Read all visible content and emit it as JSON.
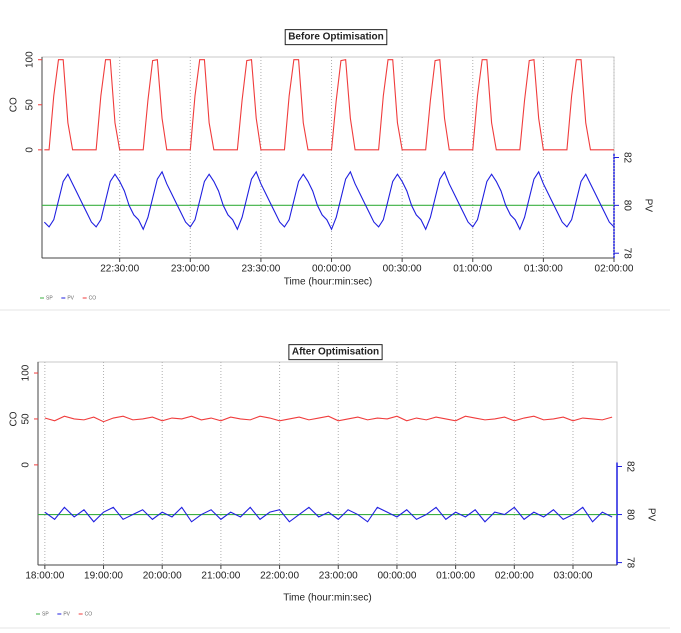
{
  "chart_data": [
    {
      "type": "line",
      "title": "Before Optimisation",
      "xlabel": "Time (hour:min:sec)",
      "ylabel": "CO",
      "y2label": "PV",
      "xlim": [
        "21:57:00",
        "02:00:00"
      ],
      "xticks": [
        "22:30:00",
        "23:00:00",
        "23:30:00",
        "00:00:00",
        "00:30:00",
        "01:00:00",
        "01:30:00",
        "02:00:00"
      ],
      "ylim": [
        -120,
        103
      ],
      "yticks": [
        0,
        50,
        100
      ],
      "y2lim": [
        77.8,
        86.2
      ],
      "y2ticks": [
        78,
        80,
        82
      ],
      "grid": "x",
      "legend": "bottom-left",
      "x": [
        "21:58:00",
        "22:00:00",
        "22:02:00",
        "22:04:00",
        "22:06:00",
        "22:08:00",
        "22:10:00",
        "22:12:00",
        "22:14:00",
        "22:16:00",
        "22:18:00",
        "22:20:00",
        "22:22:00",
        "22:24:00",
        "22:26:00",
        "22:28:00",
        "22:30:00",
        "22:32:00",
        "22:34:00",
        "22:36:00",
        "22:38:00",
        "22:40:00",
        "22:42:00",
        "22:44:00",
        "22:46:00",
        "22:48:00",
        "22:50:00",
        "22:52:00",
        "22:54:00",
        "22:56:00",
        "22:58:00",
        "23:00:00",
        "23:02:00",
        "23:04:00",
        "23:06:00",
        "23:08:00",
        "23:10:00",
        "23:12:00",
        "23:14:00",
        "23:16:00",
        "23:18:00",
        "23:20:00",
        "23:22:00",
        "23:24:00",
        "23:26:00",
        "23:28:00",
        "23:30:00",
        "23:32:00",
        "23:34:00",
        "23:36:00",
        "23:38:00",
        "23:40:00",
        "23:42:00",
        "23:44:00",
        "23:46:00",
        "23:48:00",
        "23:50:00",
        "23:52:00",
        "23:54:00",
        "23:56:00",
        "23:58:00",
        "00:00:00",
        "00:02:00",
        "00:04:00",
        "00:06:00",
        "00:08:00",
        "00:10:00",
        "00:12:00",
        "00:14:00",
        "00:16:00",
        "00:18:00",
        "00:20:00",
        "00:22:00",
        "00:24:00",
        "00:26:00",
        "00:28:00",
        "00:30:00",
        "00:32:00",
        "00:34:00",
        "00:36:00",
        "00:38:00",
        "00:40:00",
        "00:42:00",
        "00:44:00",
        "00:46:00",
        "00:48:00",
        "00:50:00",
        "00:52:00",
        "00:54:00",
        "00:56:00",
        "00:58:00",
        "01:00:00",
        "01:02:00",
        "01:04:00",
        "01:06:00",
        "01:08:00",
        "01:10:00",
        "01:12:00",
        "01:14:00",
        "01:16:00",
        "01:18:00",
        "01:20:00",
        "01:22:00",
        "01:24:00",
        "01:26:00",
        "01:28:00",
        "01:30:00",
        "01:32:00",
        "01:34:00",
        "01:36:00",
        "01:38:00",
        "01:40:00",
        "01:42:00",
        "01:44:00",
        "01:46:00",
        "01:48:00",
        "01:50:00",
        "01:52:00",
        "01:54:00",
        "01:56:00",
        "01:58:00",
        "02:00:00"
      ],
      "series": [
        {
          "name": "SP",
          "color": "#3cb043",
          "axis": "y2",
          "x": [
            "21:57:00",
            "02:00:00"
          ],
          "values": [
            80,
            80
          ]
        },
        {
          "name": "PV",
          "color": "#1f1fe0",
          "axis": "y2",
          "values": [
            79.3,
            79.1,
            79.4,
            80.2,
            81.0,
            81.3,
            80.9,
            80.5,
            80.1,
            79.7,
            79.3,
            79.1,
            79.4,
            80.2,
            81.0,
            81.3,
            81.0,
            80.6,
            80.0,
            79.6,
            79.4,
            79.0,
            79.5,
            80.3,
            81.1,
            81.4,
            80.9,
            80.5,
            80.1,
            79.7,
            79.3,
            79.1,
            79.4,
            80.2,
            81.0,
            81.3,
            81.0,
            80.6,
            80.0,
            79.6,
            79.4,
            79.0,
            79.5,
            80.3,
            81.1,
            81.4,
            80.9,
            80.5,
            80.1,
            79.7,
            79.3,
            79.1,
            79.4,
            80.2,
            81.0,
            81.3,
            81.0,
            80.6,
            80.0,
            79.6,
            79.4,
            79.0,
            79.5,
            80.3,
            81.1,
            81.4,
            80.9,
            80.5,
            80.1,
            79.7,
            79.3,
            79.1,
            79.4,
            80.2,
            81.0,
            81.3,
            81.0,
            80.6,
            80.0,
            79.6,
            79.4,
            79.0,
            79.5,
            80.3,
            81.1,
            81.4,
            80.9,
            80.5,
            80.1,
            79.7,
            79.3,
            79.1,
            79.4,
            80.2,
            81.0,
            81.3,
            81.0,
            80.6,
            80.0,
            79.6,
            79.4,
            79.0,
            79.5,
            80.3,
            81.1,
            81.4,
            80.9,
            80.5,
            80.1,
            79.7,
            79.3,
            79.1,
            79.4,
            80.2,
            81.0,
            81.3,
            80.9,
            80.5,
            80.1,
            79.7,
            79.3,
            79.1
          ]
        },
        {
          "name": "CO",
          "color": "#f03c3c",
          "values": [
            0,
            0,
            60,
            100,
            100,
            30,
            0,
            0,
            0,
            0,
            0,
            0,
            60,
            100,
            100,
            30,
            0,
            0,
            0,
            0,
            0,
            0,
            55,
            99,
            100,
            35,
            0,
            0,
            0,
            0,
            0,
            0,
            60,
            100,
            100,
            30,
            0,
            0,
            0,
            0,
            0,
            0,
            55,
            99,
            100,
            35,
            0,
            0,
            0,
            0,
            0,
            0,
            60,
            100,
            100,
            30,
            0,
            0,
            0,
            0,
            0,
            0,
            55,
            99,
            100,
            35,
            0,
            0,
            0,
            0,
            0,
            0,
            60,
            100,
            100,
            30,
            0,
            0,
            0,
            0,
            0,
            0,
            55,
            99,
            100,
            35,
            0,
            0,
            0,
            0,
            0,
            0,
            60,
            100,
            100,
            30,
            0,
            0,
            0,
            0,
            0,
            0,
            55,
            99,
            100,
            35,
            0,
            0,
            0,
            0,
            0,
            0,
            60,
            100,
            100,
            30,
            0,
            0,
            0,
            0,
            0,
            0
          ]
        }
      ]
    },
    {
      "type": "line",
      "title": "After Optimisation",
      "xlabel": "Time (hour:min:sec)",
      "ylabel": "CO",
      "y2label": "PV",
      "xlim": [
        "17:53:00",
        "03:45:00"
      ],
      "xticks": [
        "18:00:00",
        "19:00:00",
        "20:00:00",
        "21:00:00",
        "22:00:00",
        "23:00:00",
        "00:00:00",
        "01:00:00",
        "02:00:00",
        "03:00:00"
      ],
      "ylim": [
        -109,
        112
      ],
      "yticks": [
        0,
        50,
        100
      ],
      "y2lim": [
        77.9,
        86.35
      ],
      "y2ticks": [
        78,
        80,
        82
      ],
      "grid": "x",
      "legend": "bottom-left",
      "x": [
        "18:00:00",
        "18:10:00",
        "18:20:00",
        "18:30:00",
        "18:40:00",
        "18:50:00",
        "19:00:00",
        "19:10:00",
        "19:20:00",
        "19:30:00",
        "19:40:00",
        "19:50:00",
        "20:00:00",
        "20:10:00",
        "20:20:00",
        "20:30:00",
        "20:40:00",
        "20:50:00",
        "21:00:00",
        "21:10:00",
        "21:20:00",
        "21:30:00",
        "21:40:00",
        "21:50:00",
        "22:00:00",
        "22:10:00",
        "22:20:00",
        "22:30:00",
        "22:40:00",
        "22:50:00",
        "23:00:00",
        "23:10:00",
        "23:20:00",
        "23:30:00",
        "23:40:00",
        "23:50:00",
        "00:00:00",
        "00:10:00",
        "00:20:00",
        "00:30:00",
        "00:40:00",
        "00:50:00",
        "01:00:00",
        "01:10:00",
        "01:20:00",
        "01:30:00",
        "01:40:00",
        "01:50:00",
        "02:00:00",
        "02:10:00",
        "02:20:00",
        "02:30:00",
        "02:40:00",
        "02:50:00",
        "03:00:00",
        "03:10:00",
        "03:20:00",
        "03:30:00",
        "03:40:00"
      ],
      "series": [
        {
          "name": "SP",
          "color": "#3cb043",
          "axis": "y2",
          "x": [
            "17:53:00",
            "03:45:00"
          ],
          "values": [
            80,
            80
          ]
        },
        {
          "name": "PV",
          "color": "#1f1fe0",
          "axis": "y2",
          "values": [
            80.1,
            79.8,
            80.3,
            79.9,
            80.2,
            79.7,
            80.1,
            80.3,
            79.8,
            80.0,
            80.2,
            79.8,
            80.1,
            79.9,
            80.3,
            79.7,
            80.0,
            80.2,
            79.8,
            80.1,
            79.9,
            80.3,
            79.8,
            80.1,
            80.2,
            79.7,
            80.0,
            80.3,
            79.9,
            80.1,
            79.8,
            80.2,
            80.0,
            79.7,
            80.3,
            80.1,
            79.9,
            80.2,
            79.8,
            80.0,
            80.3,
            79.8,
            80.1,
            79.9,
            80.2,
            79.7,
            80.1,
            80.0,
            80.3,
            79.8,
            80.1,
            79.9,
            80.2,
            79.8,
            80.0,
            80.3,
            79.7,
            80.1,
            79.9
          ]
        },
        {
          "name": "CO",
          "color": "#f03c3c",
          "values": [
            51,
            48,
            53,
            50,
            49,
            52,
            47,
            51,
            53,
            49,
            50,
            52,
            48,
            51,
            50,
            53,
            49,
            51,
            48,
            52,
            50,
            49,
            53,
            51,
            48,
            50,
            52,
            49,
            51,
            53,
            48,
            50,
            52,
            49,
            51,
            50,
            53,
            48,
            51,
            49,
            52,
            50,
            48,
            53,
            51,
            49,
            50,
            52,
            48,
            51,
            53,
            49,
            50,
            52,
            48,
            51,
            50,
            49,
            52
          ]
        }
      ]
    }
  ]
}
